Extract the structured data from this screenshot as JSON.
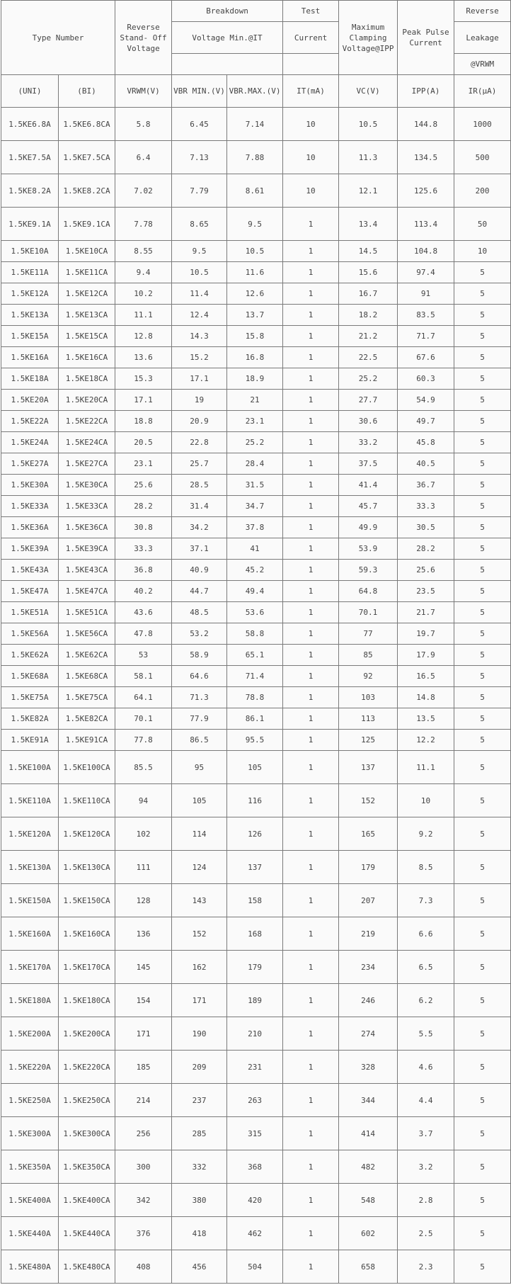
{
  "header": {
    "type_number": "Type Number",
    "reverse_standoff": "Reverse Stand- Off Voltage",
    "breakdown": "Breakdown",
    "voltage_min": "Voltage Min.@IT",
    "test": "Test",
    "current": "Current",
    "max_clamping": "Maximum Clamping Voltage@IPP",
    "peak_pulse": "Peak Pulse Current",
    "reverse": "Reverse",
    "leakage": "Leakage",
    "at_vrwm": "@VRWM",
    "units": [
      "(UNI)",
      "(BI)",
      "VRWM(V)",
      "VBR MIN.(V)",
      "VBR.MAX.(V)",
      "IT(mA)",
      "VC(V)",
      "IPP(A)",
      "IR(μA)"
    ]
  },
  "rows": [
    [
      "1.5KE6.8A",
      "1.5KE6.8CA",
      "5.8",
      "6.45",
      "7.14",
      "10",
      "10.5",
      "144.8",
      "1000"
    ],
    [
      "1.5KE7.5A",
      "1.5KE7.5CA",
      "6.4",
      "7.13",
      "7.88",
      "10",
      "11.3",
      "134.5",
      "500"
    ],
    [
      "1.5KE8.2A",
      "1.5KE8.2CA",
      "7.02",
      "7.79",
      "8.61",
      "10",
      "12.1",
      "125.6",
      "200"
    ],
    [
      "1.5KE9.1A",
      "1.5KE9.1CA",
      "7.78",
      "8.65",
      "9.5",
      "1",
      "13.4",
      "113.4",
      "50"
    ],
    [
      "1.5KE10A",
      "1.5KE10CA",
      "8.55",
      "9.5",
      "10.5",
      "1",
      "14.5",
      "104.8",
      "10"
    ],
    [
      "1.5KE11A",
      "1.5KE11CA",
      "9.4",
      "10.5",
      "11.6",
      "1",
      "15.6",
      "97.4",
      "5"
    ],
    [
      "1.5KE12A",
      "1.5KE12CA",
      "10.2",
      "11.4",
      "12.6",
      "1",
      "16.7",
      "91",
      "5"
    ],
    [
      "1.5KE13A",
      "1.5KE13CA",
      "11.1",
      "12.4",
      "13.7",
      "1",
      "18.2",
      "83.5",
      "5"
    ],
    [
      "1.5KE15A",
      "1.5KE15CA",
      "12.8",
      "14.3",
      "15.8",
      "1",
      "21.2",
      "71.7",
      "5"
    ],
    [
      "1.5KE16A",
      "1.5KE16CA",
      "13.6",
      "15.2",
      "16.8",
      "1",
      "22.5",
      "67.6",
      "5"
    ],
    [
      "1.5KE18A",
      "1.5KE18CA",
      "15.3",
      "17.1",
      "18.9",
      "1",
      "25.2",
      "60.3",
      "5"
    ],
    [
      "1.5KE20A",
      "1.5KE20CA",
      "17.1",
      "19",
      "21",
      "1",
      "27.7",
      "54.9",
      "5"
    ],
    [
      "1.5KE22A",
      "1.5KE22CA",
      "18.8",
      "20.9",
      "23.1",
      "1",
      "30.6",
      "49.7",
      "5"
    ],
    [
      "1.5KE24A",
      "1.5KE24CA",
      "20.5",
      "22.8",
      "25.2",
      "1",
      "33.2",
      "45.8",
      "5"
    ],
    [
      "1.5KE27A",
      "1.5KE27CA",
      "23.1",
      "25.7",
      "28.4",
      "1",
      "37.5",
      "40.5",
      "5"
    ],
    [
      "1.5KE30A",
      "1.5KE30CA",
      "25.6",
      "28.5",
      "31.5",
      "1",
      "41.4",
      "36.7",
      "5"
    ],
    [
      "1.5KE33A",
      "1.5KE33CA",
      "28.2",
      "31.4",
      "34.7",
      "1",
      "45.7",
      "33.3",
      "5"
    ],
    [
      "1.5KE36A",
      "1.5KE36CA",
      "30.8",
      "34.2",
      "37.8",
      "1",
      "49.9",
      "30.5",
      "5"
    ],
    [
      "1.5KE39A",
      "1.5KE39CA",
      "33.3",
      "37.1",
      "41",
      "1",
      "53.9",
      "28.2",
      "5"
    ],
    [
      "1.5KE43A",
      "1.5KE43CA",
      "36.8",
      "40.9",
      "45.2",
      "1",
      "59.3",
      "25.6",
      "5"
    ],
    [
      "1.5KE47A",
      "1.5KE47CA",
      "40.2",
      "44.7",
      "49.4",
      "1",
      "64.8",
      "23.5",
      "5"
    ],
    [
      "1.5KE51A",
      "1.5KE51CA",
      "43.6",
      "48.5",
      "53.6",
      "1",
      "70.1",
      "21.7",
      "5"
    ],
    [
      "1.5KE56A",
      "1.5KE56CA",
      "47.8",
      "53.2",
      "58.8",
      "1",
      "77",
      "19.7",
      "5"
    ],
    [
      "1.5KE62A",
      "1.5KE62CA",
      "53",
      "58.9",
      "65.1",
      "1",
      "85",
      "17.9",
      "5"
    ],
    [
      "1.5KE68A",
      "1.5KE68CA",
      "58.1",
      "64.6",
      "71.4",
      "1",
      "92",
      "16.5",
      "5"
    ],
    [
      "1.5KE75A",
      "1.5KE75CA",
      "64.1",
      "71.3",
      "78.8",
      "1",
      "103",
      "14.8",
      "5"
    ],
    [
      "1.5KE82A",
      "1.5KE82CA",
      "70.1",
      "77.9",
      "86.1",
      "1",
      "113",
      "13.5",
      "5"
    ],
    [
      "1.5KE91A",
      "1.5KE91CA",
      "77.8",
      "86.5",
      "95.5",
      "1",
      "125",
      "12.2",
      "5"
    ],
    [
      "1.5KE100A",
      "1.5KE100CA",
      "85.5",
      "95",
      "105",
      "1",
      "137",
      "11.1",
      "5"
    ],
    [
      "1.5KE110A",
      "1.5KE110CA",
      "94",
      "105",
      "116",
      "1",
      "152",
      "10",
      "5"
    ],
    [
      "1.5KE120A",
      "1.5KE120CA",
      "102",
      "114",
      "126",
      "1",
      "165",
      "9.2",
      "5"
    ],
    [
      "1.5KE130A",
      "1.5KE130CA",
      "111",
      "124",
      "137",
      "1",
      "179",
      "8.5",
      "5"
    ],
    [
      "1.5KE150A",
      "1.5KE150CA",
      "128",
      "143",
      "158",
      "1",
      "207",
      "7.3",
      "5"
    ],
    [
      "1.5KE160A",
      "1.5KE160CA",
      "136",
      "152",
      "168",
      "1",
      "219",
      "6.6",
      "5"
    ],
    [
      "1.5KE170A",
      "1.5KE170CA",
      "145",
      "162",
      "179",
      "1",
      "234",
      "6.5",
      "5"
    ],
    [
      "1.5KE180A",
      "1.5KE180CA",
      "154",
      "171",
      "189",
      "1",
      "246",
      "6.2",
      "5"
    ],
    [
      "1.5KE200A",
      "1.5KE200CA",
      "171",
      "190",
      "210",
      "1",
      "274",
      "5.5",
      "5"
    ],
    [
      "1.5KE220A",
      "1.5KE220CA",
      "185",
      "209",
      "231",
      "1",
      "328",
      "4.6",
      "5"
    ],
    [
      "1.5KE250A",
      "1.5KE250CA",
      "214",
      "237",
      "263",
      "1",
      "344",
      "4.4",
      "5"
    ],
    [
      "1.5KE300A",
      "1.5KE300CA",
      "256",
      "285",
      "315",
      "1",
      "414",
      "3.7",
      "5"
    ],
    [
      "1.5KE350A",
      "1.5KE350CA",
      "300",
      "332",
      "368",
      "1",
      "482",
      "3.2",
      "5"
    ],
    [
      "1.5KE400A",
      "1.5KE400CA",
      "342",
      "380",
      "420",
      "1",
      "548",
      "2.8",
      "5"
    ],
    [
      "1.5KE440A",
      "1.5KE440CA",
      "376",
      "418",
      "462",
      "1",
      "602",
      "2.5",
      "5"
    ],
    [
      "1.5KE480A",
      "1.5KE480CA",
      "408",
      "456",
      "504",
      "1",
      "658",
      "2.3",
      "5"
    ]
  ]
}
